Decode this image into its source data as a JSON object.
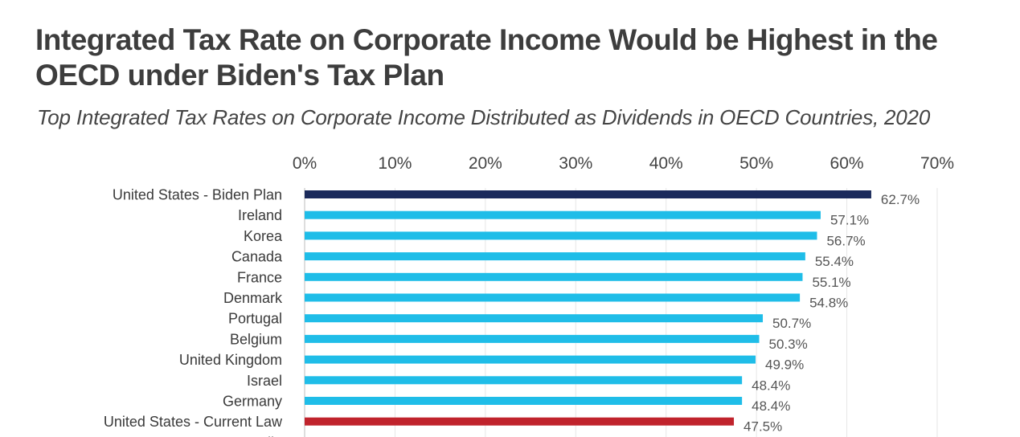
{
  "title": "Integrated Tax Rate on Corporate Income Would be Highest in the OECD under Biden's Tax Plan",
  "subtitle": "Top Integrated Tax Rates on Corporate Income Distributed as Dividends in OECD Countries, 2020",
  "chart_data": {
    "type": "bar",
    "orientation": "horizontal",
    "title": "Integrated Tax Rate on Corporate Income Would be Highest in the OECD under Biden's Tax Plan",
    "subtitle": "Top Integrated Tax Rates on Corporate Income Distributed as Dividends in OECD Countries, 2020",
    "categories": [
      "United States - Biden Plan",
      "Ireland",
      "Korea",
      "Canada",
      "France",
      "Denmark",
      "Portugal",
      "Belgium",
      "United Kingdom",
      "Israel",
      "Germany",
      "United States - Current Law",
      "Australia"
    ],
    "values": [
      62.7,
      57.1,
      56.7,
      55.4,
      55.1,
      54.8,
      50.7,
      50.3,
      49.9,
      48.4,
      48.4,
      47.5,
      null
    ],
    "data_labels": [
      "62.7%",
      "57.1%",
      "56.7%",
      "55.4%",
      "55.1%",
      "54.8%",
      "50.7%",
      "50.3%",
      "49.9%",
      "48.4%",
      "48.4%",
      "47.5%",
      ""
    ],
    "bar_colors": [
      "#1b2a5b",
      "#1fbde8",
      "#1fbde8",
      "#1fbde8",
      "#1fbde8",
      "#1fbde8",
      "#1fbde8",
      "#1fbde8",
      "#1fbde8",
      "#1fbde8",
      "#1fbde8",
      "#c0232c",
      "#1fbde8"
    ],
    "x_ticks": [
      "0%",
      "10%",
      "20%",
      "30%",
      "40%",
      "50%",
      "60%",
      "70%"
    ],
    "xlim": [
      0,
      70
    ],
    "x_axis_position": "top",
    "grid": true,
    "colors": {
      "highlight": "#1b2a5b",
      "default": "#1fbde8",
      "current_law": "#c0232c"
    }
  }
}
